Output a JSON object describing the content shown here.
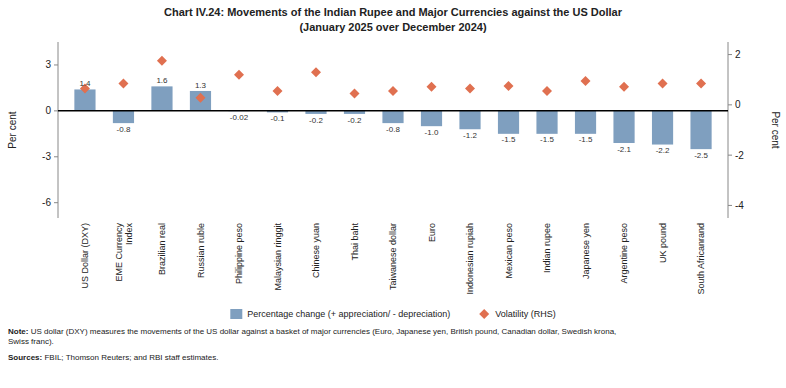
{
  "chart_data": {
    "type": "bar",
    "title": "Chart IV.24: Movements of the Indian Rupee and Major Currencies against the US Dollar",
    "subtitle": "(January 2025 over December 2024)",
    "categories": [
      "US Dollar (DXY)",
      "EME Currency\nIndex",
      "Brazilian real",
      "Russian ruble",
      "Philippine peso",
      "Malaysian ringgit",
      "Chinese yuan",
      "Thai baht",
      "Taiwanese dollar",
      "Euro",
      "Indonesian rupiah",
      "Mexican peso",
      "Indian rupee",
      "Japanese yen",
      "Argentine peso",
      "UK pound",
      "South Africanrand"
    ],
    "series": [
      {
        "name": "Percentage change (+ appreciation/ - depreciation)",
        "type": "bar",
        "color": "#7f9fbf",
        "values": [
          1.4,
          -0.8,
          1.6,
          1.3,
          -0.02,
          -0.1,
          -0.2,
          -0.2,
          -0.8,
          -1.0,
          -1.2,
          -1.5,
          -1.5,
          -1.5,
          -2.1,
          -2.2,
          -2.5
        ],
        "value_labels": [
          "1.4",
          "-0.8",
          "1.6",
          "1.3",
          "-0.02",
          "-0.1",
          "-0.2",
          "-0.2",
          "-0.8",
          "-1.0",
          "-1.2",
          "-1.5",
          "-1.5",
          "-1.5",
          "-2.1",
          "-2.2",
          "-2.5"
        ],
        "data_labels": true
      },
      {
        "name": "Volatility (RHS)",
        "type": "scatter",
        "marker": "diamond",
        "color": "#e07050",
        "axis": "y2",
        "values": [
          0.65,
          0.85,
          1.75,
          0.28,
          1.2,
          0.55,
          1.3,
          0.45,
          0.55,
          0.72,
          0.65,
          0.75,
          0.55,
          0.95,
          0.72,
          0.85,
          0.85
        ]
      }
    ],
    "ylim": [
      -7.0,
      4.5
    ],
    "yticks": [
      3,
      0,
      -3,
      -6
    ],
    "y2lim": [
      -4.5,
      2.5
    ],
    "y2ticks": [
      2,
      0,
      -2,
      -4
    ],
    "ylabel": "Per cent",
    "y2label": "Per cent",
    "legend": "bottom",
    "annotations": [
      "Note: US dollar (DXY) measures the movements of the US dollar against a basket of major currencies (Euro, Japanese yen, British pound, Canadian dollar, Swedish krona,\nSwiss franc).",
      "Sources: FBIL; Thomson Reuters; and RBI staff estimates."
    ]
  }
}
